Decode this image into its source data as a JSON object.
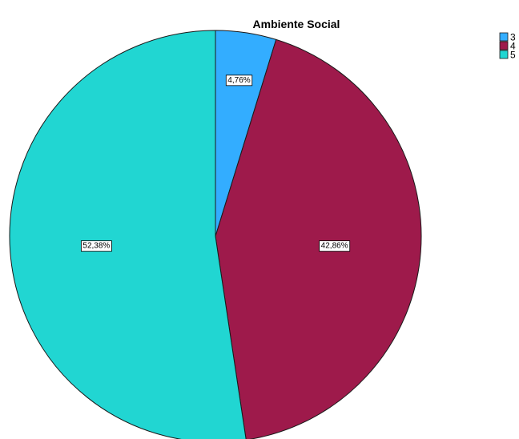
{
  "chart_data": {
    "type": "pie",
    "title": "Ambiente Social",
    "categories": [
      "3",
      "4",
      "5"
    ],
    "values": [
      4.76,
      42.86,
      52.38
    ],
    "labels": [
      "4,76%",
      "42,86%",
      "52,38%"
    ],
    "colors": [
      "#33adff",
      "#9e1a4b",
      "#21d6d2"
    ],
    "legend_position": "top-right",
    "start_angle": "12 o'clock",
    "direction": "clockwise"
  }
}
